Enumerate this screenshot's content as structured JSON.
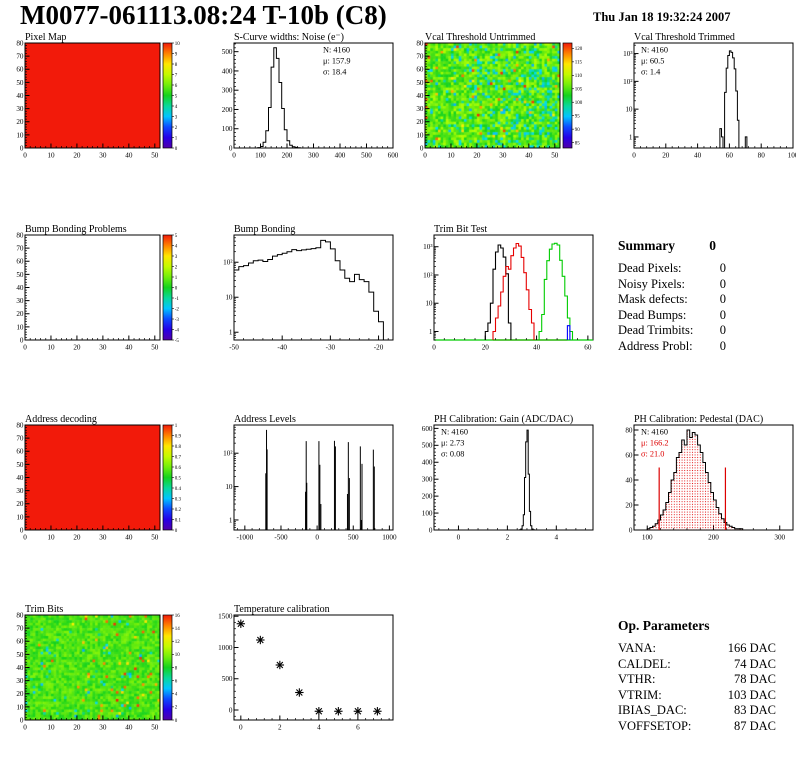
{
  "header": {
    "title": "M0077-061113.08:24 T-10b (C8)",
    "date": "Thu Jan 18 19:32:24 2007"
  },
  "summary": {
    "title": "Summary",
    "total": "0",
    "rows": [
      {
        "label": "Dead Pixels:",
        "value": "0"
      },
      {
        "label": "Noisy Pixels:",
        "value": "0"
      },
      {
        "label": "Mask defects:",
        "value": "0"
      },
      {
        "label": "Dead Bumps:",
        "value": "0"
      },
      {
        "label": "Dead Trimbits:",
        "value": "0"
      },
      {
        "label": "Address Probl:",
        "value": "0"
      }
    ]
  },
  "op_parameters": {
    "title": "Op. Parameters",
    "rows": [
      {
        "label": "VANA:",
        "value": "166 DAC"
      },
      {
        "label": "CALDEL:",
        "value": "74 DAC"
      },
      {
        "label": "VTHR:",
        "value": "78 DAC"
      },
      {
        "label": "VTRIM:",
        "value": "103 DAC"
      },
      {
        "label": "IBIAS_DAC:",
        "value": "83 DAC"
      },
      {
        "label": "VOFFSETOP:",
        "value": "87 DAC"
      }
    ]
  },
  "chart_data": [
    {
      "id": "pixel_map",
      "type": "heatmap",
      "title": "Pixel Map",
      "x_range": [
        0,
        52
      ],
      "x_ticks": [
        0,
        10,
        20,
        30,
        40,
        50
      ],
      "y_range": [
        0,
        80
      ],
      "y_ticks": [
        0,
        10,
        20,
        30,
        40,
        50,
        60,
        70,
        80
      ],
      "fill": {
        "mode": "solid",
        "value_t": 1.0
      },
      "colorbar": {
        "min": 0,
        "max": 10,
        "ticks": [
          0,
          1,
          2,
          3,
          4,
          5,
          6,
          7,
          8,
          9,
          10
        ]
      }
    },
    {
      "id": "scurve_noise",
      "type": "hist",
      "title": "S-Curve widths: Noise (e⁻)",
      "x_range": [
        0,
        600
      ],
      "x_ticks": [
        0,
        100,
        200,
        300,
        400,
        500,
        600
      ],
      "y_scale": "lin",
      "y_range": [
        0,
        545
      ],
      "y_ticks": [
        0,
        100,
        200,
        300,
        400,
        500
      ],
      "bin_width": 10,
      "color": "#000000",
      "bins": [
        [
          90,
          2
        ],
        [
          100,
          8
        ],
        [
          110,
          30
        ],
        [
          120,
          90
        ],
        [
          130,
          210
        ],
        [
          140,
          420
        ],
        [
          150,
          520
        ],
        [
          160,
          465
        ],
        [
          170,
          340
        ],
        [
          180,
          205
        ],
        [
          190,
          95
        ],
        [
          200,
          38
        ],
        [
          210,
          14
        ],
        [
          220,
          6
        ],
        [
          230,
          3
        ],
        [
          240,
          1
        ]
      ],
      "stats": {
        "pos": "tr",
        "lines": [
          {
            "text": "N: 4160"
          },
          {
            "text": "μ: 157.9"
          },
          {
            "text": "σ: 18.4"
          }
        ]
      }
    },
    {
      "id": "vcal_untrimmed",
      "type": "heatmap",
      "title": "Vcal Threshold Untrimmed",
      "x_range": [
        0,
        52
      ],
      "x_ticks": [
        0,
        10,
        20,
        30,
        40,
        50
      ],
      "y_range": [
        0,
        80
      ],
      "y_ticks": [
        0,
        10,
        20,
        30,
        40,
        50,
        60,
        70,
        80
      ],
      "fill": {
        "mode": "noise",
        "seed": 7,
        "base": 0.58,
        "jitter": 0.09,
        "cold_frac": 0.05,
        "right_cold": 0.22,
        "hot_frac": 0.02,
        "right_hot": 0
      },
      "colorbar": {
        "min": 83,
        "max": 122,
        "ticks": [
          85,
          90,
          95,
          100,
          105,
          110,
          115,
          120
        ]
      }
    },
    {
      "id": "vcal_trimmed",
      "type": "hist",
      "title": "Vcal Threshold Trimmed",
      "x_range": [
        0,
        100
      ],
      "x_ticks": [
        0,
        20,
        40,
        60,
        80,
        100
      ],
      "y_scale": "log",
      "y_range": [
        0.4,
        2400
      ],
      "bin_width": 1,
      "color": "#000000",
      "bins": [
        [
          54,
          2
        ],
        [
          55,
          1
        ],
        [
          57,
          40
        ],
        [
          58,
          300
        ],
        [
          59,
          850
        ],
        [
          60,
          1250
        ],
        [
          61,
          1100
        ],
        [
          62,
          700
        ],
        [
          63,
          280
        ],
        [
          64,
          45
        ],
        [
          65,
          4
        ],
        [
          70,
          1
        ]
      ],
      "stats": {
        "pos": "tl",
        "lines": [
          {
            "text": "N: 4160"
          },
          {
            "text": "μ: 60.5"
          },
          {
            "text": "σ:  1.4"
          }
        ]
      }
    },
    {
      "id": "bump_problems",
      "type": "heatmap",
      "title": "Bump Bonding Problems",
      "x_range": [
        0,
        52
      ],
      "x_ticks": [
        0,
        10,
        20,
        30,
        40,
        50
      ],
      "y_range": [
        0,
        80
      ],
      "y_ticks": [
        0,
        10,
        20,
        30,
        40,
        50,
        60,
        70,
        80
      ],
      "fill": {
        "mode": "empty"
      },
      "colorbar": {
        "min": -5,
        "max": 5,
        "ticks": [
          -5,
          -4,
          -3,
          -2,
          -1,
          0,
          1,
          2,
          3,
          4,
          5
        ]
      }
    },
    {
      "id": "bump_bonding",
      "type": "hist",
      "title": "Bump Bonding",
      "x_range": [
        -50,
        -17
      ],
      "x_ticks": [
        -50,
        -40,
        -30,
        -20
      ],
      "y_scale": "log",
      "y_range": [
        0.6,
        600
      ],
      "bin_width": 1,
      "color": "#000000",
      "bins": [
        [
          -50,
          60
        ],
        [
          -49,
          75
        ],
        [
          -48,
          80
        ],
        [
          -47,
          95
        ],
        [
          -46,
          110
        ],
        [
          -45,
          115
        ],
        [
          -44,
          105
        ],
        [
          -43,
          120
        ],
        [
          -42,
          150
        ],
        [
          -41,
          165
        ],
        [
          -40,
          180
        ],
        [
          -39,
          200
        ],
        [
          -38,
          230
        ],
        [
          -37,
          215
        ],
        [
          -36,
          225
        ],
        [
          -35,
          235
        ],
        [
          -34,
          245
        ],
        [
          -33,
          260
        ],
        [
          -32,
          420
        ],
        [
          -31,
          380
        ],
        [
          -30,
          240
        ],
        [
          -29,
          110
        ],
        [
          -28,
          60
        ],
        [
          -27,
          35
        ],
        [
          -26,
          28
        ],
        [
          -25,
          45
        ],
        [
          -24,
          32
        ],
        [
          -23,
          28
        ],
        [
          -22,
          14
        ],
        [
          -21,
          4
        ],
        [
          -20,
          2
        ]
      ]
    },
    {
      "id": "trim_bit_test",
      "type": "multi_hist",
      "title": "Trim Bit Test",
      "x_range": [
        0,
        62
      ],
      "x_ticks": [
        0,
        20,
        40,
        60
      ],
      "y_scale": "log",
      "y_range": [
        0.5,
        2600
      ],
      "bin_width": 1,
      "series": [
        {
          "color": "#000000",
          "bins": [
            [
              20,
              1
            ],
            [
              21,
              2
            ],
            [
              22,
              10
            ],
            [
              23,
              160
            ],
            [
              24,
              650
            ],
            [
              25,
              1150
            ],
            [
              26,
              900
            ],
            [
              27,
              430
            ],
            [
              28,
              110
            ],
            [
              29,
              2
            ]
          ]
        },
        {
          "color": "#e60000",
          "bins": [
            [
              23,
              1
            ],
            [
              24,
              3
            ],
            [
              25,
              8
            ],
            [
              26,
              25
            ],
            [
              27,
              90
            ],
            [
              28,
              200
            ],
            [
              29,
              160
            ],
            [
              30,
              480
            ],
            [
              31,
              900
            ],
            [
              32,
              1300
            ],
            [
              33,
              1050
            ],
            [
              34,
              420
            ],
            [
              35,
              120
            ],
            [
              36,
              30
            ],
            [
              37,
              6
            ],
            [
              38,
              2
            ]
          ]
        },
        {
          "color": "#00cc00",
          "bins": [
            [
              41,
              1
            ],
            [
              42,
              4
            ],
            [
              43,
              70
            ],
            [
              44,
              320
            ],
            [
              45,
              820
            ],
            [
              46,
              1250
            ],
            [
              47,
              1320
            ],
            [
              48,
              1150
            ],
            [
              49,
              330
            ],
            [
              50,
              90
            ],
            [
              51,
              18
            ],
            [
              52,
              3
            ],
            [
              53,
              1
            ]
          ]
        },
        {
          "color": "#0000ff",
          "bins": [
            [
              52,
              1.6
            ]
          ]
        }
      ],
      "baselines": [
        {
          "color": "#e60000",
          "x1": 23,
          "x2": 52
        },
        {
          "color": "#00cc00",
          "x1": 0,
          "x2": 62
        }
      ]
    },
    {
      "id": "address_decoding",
      "type": "heatmap",
      "title": "Address decoding",
      "x_range": [
        0,
        52
      ],
      "x_ticks": [
        0,
        10,
        20,
        30,
        40,
        50
      ],
      "y_range": [
        0,
        80
      ],
      "y_ticks": [
        0,
        10,
        20,
        30,
        40,
        50,
        60,
        70,
        80
      ],
      "fill": {
        "mode": "solid",
        "value_t": 1.0
      },
      "colorbar": {
        "min": 0,
        "max": 1,
        "ticks": [
          0,
          0.1,
          0.2,
          0.3,
          0.4,
          0.5,
          0.6,
          0.7,
          0.8,
          0.9,
          1
        ]
      }
    },
    {
      "id": "address_levels",
      "type": "spikes",
      "title": "Address Levels",
      "x_range": [
        -1150,
        1050
      ],
      "x_ticks": [
        -1000,
        -500,
        0,
        500,
        1000
      ],
      "y_scale": "log",
      "y_range": [
        0.5,
        700
      ],
      "color": "#000000",
      "spikes": [
        [
          -710,
          25
        ],
        [
          -700,
          500
        ],
        [
          -692,
          130
        ],
        [
          -160,
          7
        ],
        [
          -151,
          230
        ],
        [
          -143,
          13
        ],
        [
          25,
          230
        ],
        [
          38,
          45
        ],
        [
          52,
          3
        ],
        [
          240,
          235
        ],
        [
          253,
          160
        ],
        [
          420,
          6
        ],
        [
          432,
          215
        ],
        [
          446,
          18
        ],
        [
          598,
          160
        ],
        [
          611,
          1
        ],
        [
          621,
          48
        ],
        [
          778,
          128
        ],
        [
          791,
          40
        ]
      ]
    },
    {
      "id": "ph_gain",
      "type": "hist",
      "title": "PH Calibration: Gain (ADC/DAC)",
      "x_range": [
        -1,
        5.5
      ],
      "x_ticks": [
        0,
        2,
        4
      ],
      "y_scale": "lin",
      "y_range": [
        0,
        620
      ],
      "y_ticks": [
        0,
        100,
        200,
        300,
        400,
        500,
        600
      ],
      "bin_width": 0.05,
      "color": "#000000",
      "bins": [
        [
          2.5,
          2
        ],
        [
          2.55,
          6
        ],
        [
          2.6,
          25
        ],
        [
          2.65,
          90
        ],
        [
          2.7,
          310
        ],
        [
          2.75,
          520
        ],
        [
          2.8,
          590
        ],
        [
          2.85,
          330
        ],
        [
          2.9,
          110
        ],
        [
          2.95,
          25
        ],
        [
          3.0,
          6
        ],
        [
          3.05,
          2
        ]
      ],
      "stats": {
        "pos": "tl",
        "lines": [
          {
            "text": "N: 4160"
          },
          {
            "text": "μ: 2.73"
          },
          {
            "text": "σ: 0.08"
          }
        ]
      }
    },
    {
      "id": "ph_pedestal",
      "type": "hist",
      "title": "PH Calibration: Pedestal (DAC)",
      "x_range": [
        80,
        320
      ],
      "x_ticks": [
        100,
        200,
        300
      ],
      "y_scale": "lin",
      "y_range": [
        0,
        84
      ],
      "y_ticks": [
        0,
        20,
        40,
        60,
        80
      ],
      "bin_width": 4,
      "color": "#000000",
      "fill_pattern": "red_dots",
      "bins": [
        [
          100,
          1
        ],
        [
          104,
          2
        ],
        [
          108,
          3
        ],
        [
          112,
          5
        ],
        [
          116,
          8
        ],
        [
          120,
          12
        ],
        [
          124,
          16
        ],
        [
          128,
          22
        ],
        [
          132,
          30
        ],
        [
          136,
          40
        ],
        [
          140,
          46
        ],
        [
          144,
          58
        ],
        [
          148,
          62
        ],
        [
          152,
          72
        ],
        [
          156,
          68
        ],
        [
          160,
          80
        ],
        [
          164,
          74
        ],
        [
          168,
          78
        ],
        [
          172,
          76
        ],
        [
          176,
          68
        ],
        [
          180,
          62
        ],
        [
          184,
          54
        ],
        [
          188,
          46
        ],
        [
          192,
          38
        ],
        [
          196,
          30
        ],
        [
          200,
          24
        ],
        [
          204,
          18
        ],
        [
          208,
          13
        ],
        [
          212,
          9
        ],
        [
          216,
          6
        ],
        [
          220,
          4
        ],
        [
          224,
          3
        ],
        [
          228,
          2
        ],
        [
          232,
          1
        ],
        [
          236,
          1
        ],
        [
          240,
          1
        ]
      ],
      "vlines": [
        {
          "x": 118,
          "y": 50,
          "color": "#dd0000"
        },
        {
          "x": 218,
          "y": 50,
          "color": "#dd0000"
        }
      ],
      "stats": {
        "pos": "tl",
        "lines": [
          {
            "text": "N: 4160",
            "color": "#000000"
          },
          {
            "text": "μ: 166.2",
            "color": "#dd0000"
          },
          {
            "text": "σ: 21.0",
            "color": "#dd0000"
          }
        ]
      }
    },
    {
      "id": "trim_bits",
      "type": "heatmap",
      "title": "Trim Bits",
      "x_range": [
        0,
        52
      ],
      "x_ticks": [
        0,
        10,
        20,
        30,
        40,
        50
      ],
      "y_range": [
        0,
        80
      ],
      "y_ticks": [
        0,
        10,
        20,
        30,
        40,
        50,
        60,
        70,
        80
      ],
      "fill": {
        "mode": "noise",
        "seed": 21,
        "base": 0.56,
        "jitter": 0.06,
        "cold_frac": 0.03,
        "right_cold": 0,
        "hot_frac": 0.01,
        "right_hot": 0.05
      },
      "colorbar": {
        "min": 0,
        "max": 16,
        "ticks": [
          0,
          2,
          4,
          6,
          8,
          10,
          12,
          14,
          16
        ]
      }
    },
    {
      "id": "temp_calibration",
      "type": "scatter_star",
      "title": "Temperature calibration",
      "x_range": [
        -0.35,
        7.8
      ],
      "x_ticks": [
        0,
        2,
        4,
        6
      ],
      "y_scale": "lin",
      "y_range": [
        -160,
        1520
      ],
      "y_ticks": [
        0,
        500,
        1000,
        1500
      ],
      "color": "#000000",
      "points": [
        [
          0,
          1380
        ],
        [
          1,
          1120
        ],
        [
          2,
          720
        ],
        [
          3,
          280
        ],
        [
          4,
          -20
        ],
        [
          5,
          -20
        ],
        [
          6,
          -20
        ],
        [
          7,
          -20
        ]
      ]
    }
  ]
}
